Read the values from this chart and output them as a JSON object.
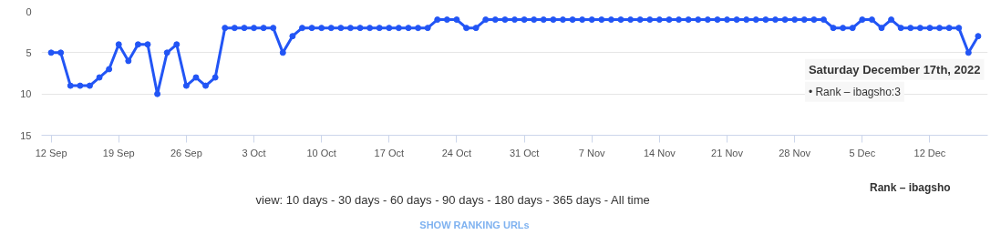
{
  "chart_data": {
    "type": "line",
    "x": [
      "2022-09-12",
      "2022-09-13",
      "2022-09-14",
      "2022-09-15",
      "2022-09-16",
      "2022-09-17",
      "2022-09-18",
      "2022-09-19",
      "2022-09-20",
      "2022-09-21",
      "2022-09-22",
      "2022-09-23",
      "2022-09-24",
      "2022-09-25",
      "2022-09-26",
      "2022-09-27",
      "2022-09-28",
      "2022-09-29",
      "2022-09-30",
      "2022-10-01",
      "2022-10-02",
      "2022-10-03",
      "2022-10-04",
      "2022-10-05",
      "2022-10-06",
      "2022-10-07",
      "2022-10-08",
      "2022-10-09",
      "2022-10-10",
      "2022-10-11",
      "2022-10-12",
      "2022-10-13",
      "2022-10-14",
      "2022-10-15",
      "2022-10-16",
      "2022-10-17",
      "2022-10-18",
      "2022-10-19",
      "2022-10-20",
      "2022-10-21",
      "2022-10-22",
      "2022-10-23",
      "2022-10-24",
      "2022-10-25",
      "2022-10-26",
      "2022-10-27",
      "2022-10-28",
      "2022-10-29",
      "2022-10-30",
      "2022-10-31",
      "2022-11-01",
      "2022-11-02",
      "2022-11-03",
      "2022-11-04",
      "2022-11-05",
      "2022-11-06",
      "2022-11-07",
      "2022-11-08",
      "2022-11-09",
      "2022-11-10",
      "2022-11-11",
      "2022-11-12",
      "2022-11-13",
      "2022-11-14",
      "2022-11-15",
      "2022-11-16",
      "2022-11-17",
      "2022-11-18",
      "2022-11-19",
      "2022-11-20",
      "2022-11-21",
      "2022-11-22",
      "2022-11-23",
      "2022-11-24",
      "2022-11-25",
      "2022-11-26",
      "2022-11-27",
      "2022-11-28",
      "2022-11-29",
      "2022-11-30",
      "2022-12-01",
      "2022-12-02",
      "2022-12-03",
      "2022-12-04",
      "2022-12-05",
      "2022-12-06",
      "2022-12-07",
      "2022-12-08",
      "2022-12-09",
      "2022-12-10",
      "2022-12-11",
      "2022-12-12",
      "2022-12-13",
      "2022-12-14",
      "2022-12-15",
      "2022-12-16",
      "2022-12-17"
    ],
    "series": [
      {
        "name": "Rank – ibagsho",
        "color": "#2255f5",
        "values": [
          5,
          5,
          9,
          9,
          9,
          8,
          7,
          4,
          6,
          4,
          4,
          10,
          5,
          4,
          9,
          8,
          9,
          8,
          2,
          2,
          2,
          2,
          2,
          2,
          5,
          3,
          2,
          2,
          2,
          2,
          2,
          2,
          2,
          2,
          2,
          2,
          2,
          2,
          2,
          2,
          1,
          1,
          1,
          2,
          2,
          1,
          1,
          1,
          1,
          1,
          1,
          1,
          1,
          1,
          1,
          1,
          1,
          1,
          1,
          1,
          1,
          1,
          1,
          1,
          1,
          1,
          1,
          1,
          1,
          1,
          1,
          1,
          1,
          1,
          1,
          1,
          1,
          1,
          1,
          1,
          1,
          2,
          2,
          2,
          1,
          1,
          2,
          1,
          2,
          2,
          2,
          2,
          2,
          2,
          2,
          5,
          3
        ]
      }
    ],
    "xlim": [
      "2022-09-11",
      "2022-12-18"
    ],
    "xticks": [
      {
        "value": "2022-09-12",
        "label": "12 Sep"
      },
      {
        "value": "2022-09-19",
        "label": "19 Sep"
      },
      {
        "value": "2022-09-26",
        "label": "26 Sep"
      },
      {
        "value": "2022-10-03",
        "label": "3 Oct"
      },
      {
        "value": "2022-10-10",
        "label": "10 Oct"
      },
      {
        "value": "2022-10-17",
        "label": "17 Oct"
      },
      {
        "value": "2022-10-24",
        "label": "24 Oct"
      },
      {
        "value": "2022-10-31",
        "label": "31 Oct"
      },
      {
        "value": "2022-11-07",
        "label": "7 Nov"
      },
      {
        "value": "2022-11-14",
        "label": "14 Nov"
      },
      {
        "value": "2022-11-21",
        "label": "21 Nov"
      },
      {
        "value": "2022-11-28",
        "label": "28 Nov"
      },
      {
        "value": "2022-12-05",
        "label": "5 Dec"
      },
      {
        "value": "2022-12-12",
        "label": "12 Dec"
      }
    ],
    "ylim": [
      15,
      0
    ],
    "yticks": [
      0,
      5,
      10,
      15
    ],
    "grid": "y",
    "legend": "bottom right",
    "marker": "circle",
    "line_style": "solid",
    "annotations": [
      {
        "text": "Saturday December 17th, 2022",
        "x": "2022-12-17",
        "y": 3
      },
      "• Rank – ibagsho:3",
      "view:  10 days  -  30 days  -  60 days  -  90 days  -  180 days  -  365 days  -  All time",
      "SHOW RANKING URLs"
    ]
  }
}
